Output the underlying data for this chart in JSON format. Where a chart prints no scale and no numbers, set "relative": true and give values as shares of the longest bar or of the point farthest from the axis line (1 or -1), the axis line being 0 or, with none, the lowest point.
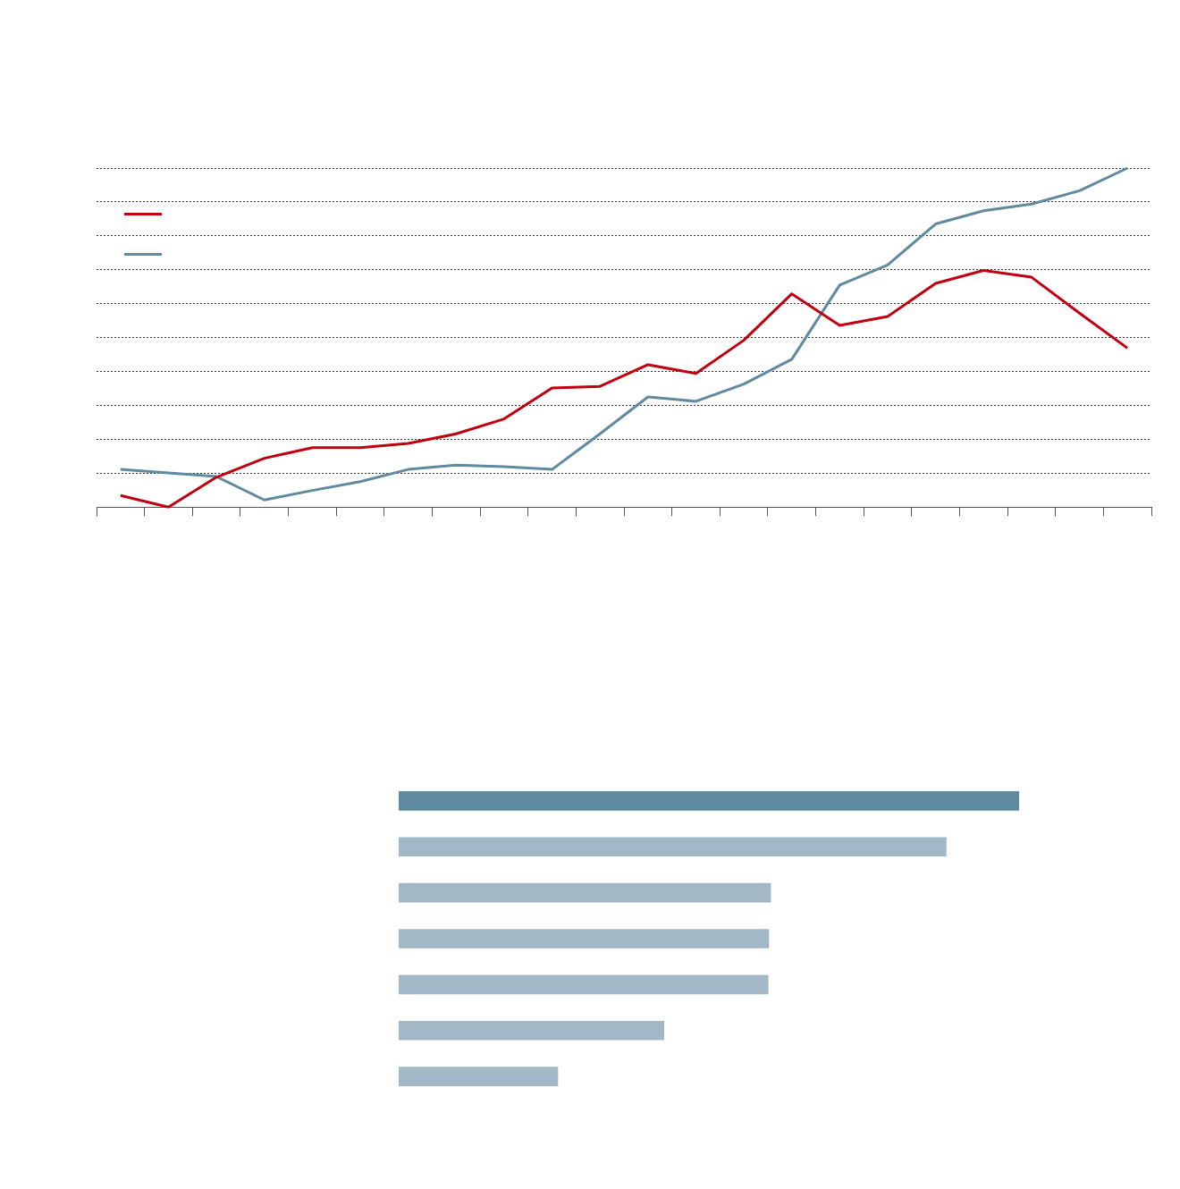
{
  "chart_data": [
    {
      "type": "line",
      "relative": true,
      "grid": "y",
      "categories": [
        null,
        null,
        null,
        null,
        null,
        null,
        null,
        null,
        null,
        null,
        null,
        null,
        null,
        null,
        null,
        null,
        null,
        null,
        null,
        null,
        null,
        null
      ],
      "series": [
        {
          "type": "line",
          "color": "#c0000f",
          "values": [
            0.034,
            0,
            0.088,
            0.144,
            0.175,
            0.175,
            0.188,
            0.216,
            0.26,
            0.351,
            0.356,
            0.42,
            0.394,
            0.492,
            0.629,
            0.536,
            0.562,
            0.66,
            0.698,
            0.678,
            0.572,
            0.469
          ]
        },
        {
          "type": "line",
          "color": "#5f8aa0",
          "values": [
            0.111,
            0.101,
            0.09,
            0.021,
            0.049,
            0.075,
            0.111,
            0.124,
            0.119,
            0.111,
            0.216,
            0.325,
            0.312,
            0.363,
            0.436,
            0.655,
            0.714,
            0.835,
            0.874,
            0.894,
            0.933,
            1
          ]
        }
      ]
    },
    {
      "type": "bar",
      "orientation": "horizontal",
      "relative": true,
      "categories": [
        null,
        null,
        null,
        null,
        null,
        null,
        null
      ],
      "values": [
        1,
        0.883,
        0.6,
        0.597,
        0.596,
        0.428,
        0.257
      ],
      "colors": [
        "#5f8aa0",
        "#a2b8c6",
        "#a2b8c6",
        "#a2b8c6",
        "#a2b8c6",
        "#a2b8c6",
        "#a2b8c6"
      ]
    }
  ]
}
